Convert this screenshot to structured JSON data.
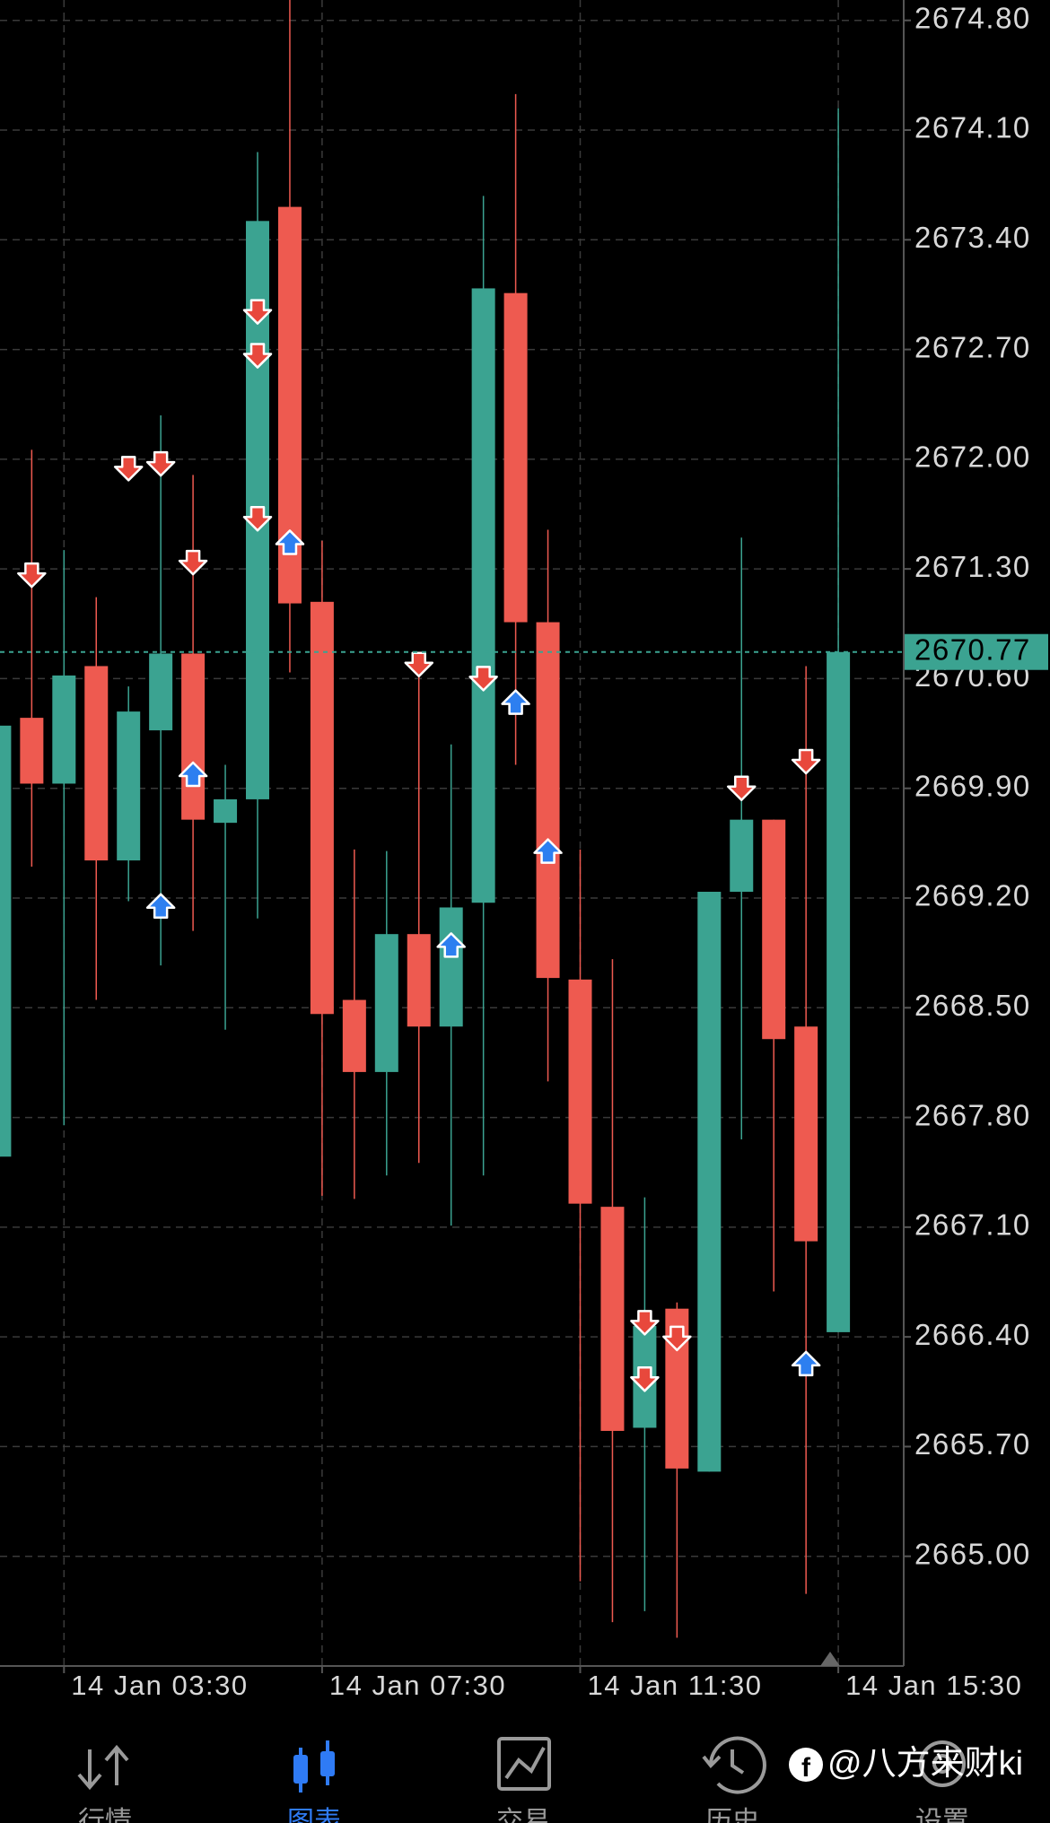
{
  "chart_data": {
    "type": "candlestick",
    "categories": [
      null,
      null,
      "14 Jan 03:30",
      null,
      null,
      null,
      null,
      null,
      null,
      null,
      "14 Jan 07:30",
      null,
      null,
      null,
      null,
      null,
      null,
      null,
      "14 Jan 11:30",
      null,
      null,
      null,
      null,
      null,
      null,
      null,
      "14 Jan 15:30"
    ],
    "open": [
      2667.55,
      2670.35,
      2669.93,
      2670.68,
      2669.44,
      2670.27,
      2670.76,
      2669.68,
      2669.83,
      2673.61,
      2671.09,
      2668.55,
      2668.09,
      2668.97,
      2668.38,
      2669.17,
      2673.06,
      2670.96,
      2668.68,
      2667.23,
      2665.82,
      2666.58,
      2665.54,
      2669.24,
      2669.7,
      2668.38,
      2666.43
    ],
    "high": [
      2670.3,
      2672.06,
      2671.42,
      2671.12,
      2670.55,
      2672.28,
      2671.9,
      2670.05,
      2673.96,
      2674.93,
      2671.48,
      2669.51,
      2669.5,
      2670.7,
      2670.18,
      2673.68,
      2674.33,
      2671.55,
      2669.51,
      2668.81,
      2667.29,
      2666.62,
      2669.24,
      2671.5,
      2669.7,
      2670.68,
      2674.24
    ],
    "low": [
      2667.55,
      2669.4,
      2667.75,
      2668.55,
      2669.18,
      2668.77,
      2668.99,
      2668.36,
      2669.07,
      2670.64,
      2667.3,
      2667.28,
      2667.43,
      2667.51,
      2667.11,
      2667.43,
      2670.05,
      2668.03,
      2664.84,
      2664.58,
      2664.65,
      2664.48,
      2665.54,
      2667.66,
      2666.69,
      2664.76,
      2666.43
    ],
    "close": [
      2670.3,
      2669.93,
      2670.62,
      2669.44,
      2670.39,
      2670.76,
      2669.7,
      2669.83,
      2673.52,
      2671.08,
      2668.46,
      2668.09,
      2668.97,
      2668.38,
      2669.14,
      2673.09,
      2670.96,
      2668.69,
      2667.25,
      2665.8,
      2666.47,
      2665.56,
      2669.24,
      2669.7,
      2668.3,
      2667.01,
      2670.77
    ],
    "up_color": "#3ba391",
    "down_color": "#ee5a50",
    "sell_markers": {
      "color": "#e8483c",
      "x": [
        1,
        4,
        5,
        6,
        8,
        8,
        8,
        13,
        15,
        20,
        20,
        21,
        23,
        25
      ],
      "values": [
        2671.26,
        2671.94,
        2671.97,
        2671.34,
        2672.94,
        2672.66,
        2671.62,
        2670.69,
        2670.6,
        2666.49,
        2666.13,
        2666.39,
        2669.9,
        2670.07
      ]
    },
    "buy_markers": {
      "color": "#2d7ff0",
      "x": [
        5,
        6,
        9,
        14,
        16,
        17,
        25
      ],
      "values": [
        2669.15,
        2669.99,
        2671.47,
        2668.9,
        2670.45,
        2669.5,
        2666.23
      ]
    },
    "current_price": 2670.77,
    "current_color": "#3ba391",
    "ylim": [
      2664.3,
      2674.93
    ],
    "yticks": [
      {
        "value": 2674.8,
        "label": "2674.80"
      },
      {
        "value": 2674.1,
        "label": "2674.10"
      },
      {
        "value": 2673.4,
        "label": "2673.40"
      },
      {
        "value": 2672.7,
        "label": "2672.70"
      },
      {
        "value": 2672.0,
        "label": "2672.00"
      },
      {
        "value": 2671.3,
        "label": "2671.30"
      },
      {
        "value": 2670.6,
        "label": "2670.60"
      },
      {
        "value": 2669.9,
        "label": "2669.90"
      },
      {
        "value": 2669.2,
        "label": "2669.20"
      },
      {
        "value": 2668.5,
        "label": "2668.50"
      },
      {
        "value": 2667.8,
        "label": "2667.80"
      },
      {
        "value": 2667.1,
        "label": "2667.10"
      },
      {
        "value": 2666.4,
        "label": "2666.40"
      },
      {
        "value": 2665.7,
        "label": "2665.70"
      },
      {
        "value": 2665.0,
        "label": "2665.00"
      }
    ],
    "grid": true
  },
  "nav": {
    "items": [
      "行情",
      "图表",
      "交易",
      "历史",
      "设置"
    ],
    "active": 1,
    "watermark": "@八方来财ki"
  }
}
